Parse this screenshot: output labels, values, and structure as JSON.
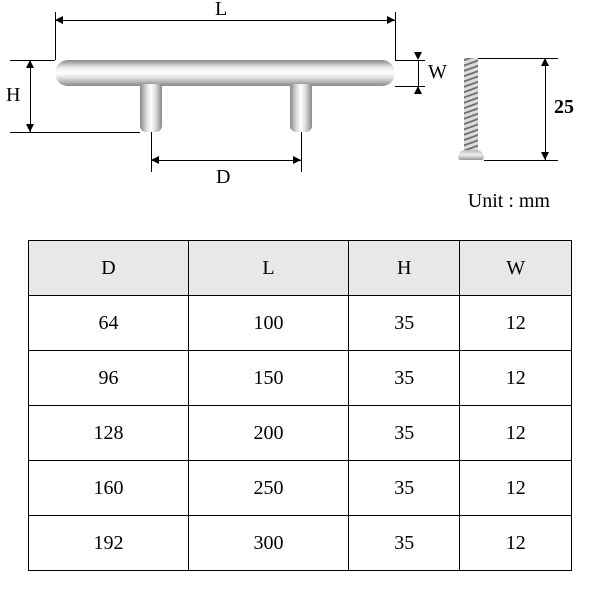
{
  "labels": {
    "L": "L",
    "W": "W",
    "H": "H",
    "D": "D",
    "screw_len": "25",
    "unit": "Unit : mm"
  },
  "table": {
    "columns": [
      "D",
      "L",
      "H",
      "W"
    ],
    "rows": [
      [
        "64",
        "100",
        "35",
        "12"
      ],
      [
        "96",
        "150",
        "35",
        "12"
      ],
      [
        "128",
        "200",
        "35",
        "12"
      ],
      [
        "160",
        "250",
        "35",
        "12"
      ],
      [
        "192",
        "300",
        "35",
        "12"
      ]
    ],
    "header_bg": "#e8e8e8",
    "border_color": "#000000",
    "font_size": 20
  },
  "colors": {
    "metal_light": "#eeeeee",
    "metal_dark": "#888888",
    "background": "#ffffff",
    "line": "#000000"
  }
}
